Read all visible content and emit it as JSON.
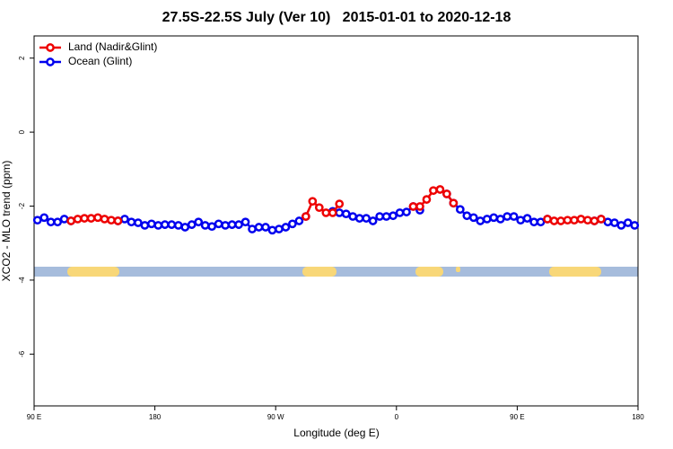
{
  "chart_data": {
    "type": "line",
    "title": "27.5S-22.5S July (Ver 10)   2015-01-01 to 2020-12-18",
    "xlabel": "Longitude (deg E)",
    "ylabel": "XCO2 - MLO trend (ppm)",
    "xlim": [
      90,
      540
    ],
    "ylim": [
      -7.4,
      2.6
    ],
    "xticks": [
      {
        "value": 90,
        "label": "90 E"
      },
      180,
      {
        "value": 270,
        "label": "90 W"
      },
      {
        "value": 360,
        "label": "0"
      },
      {
        "value": 450,
        "label": "90 E"
      },
      {
        "value": 540,
        "label": "180"
      }
    ],
    "yticks": [
      2,
      0,
      -2,
      -4,
      -6
    ],
    "legend": "topleft",
    "x": [
      92.5,
      97.5,
      102.5,
      107.5,
      112.5,
      117.5,
      122.5,
      127.5,
      132.5,
      137.5,
      142.5,
      147.5,
      152.5,
      157.5,
      162.5,
      167.5,
      172.5,
      177.5,
      182.5,
      187.5,
      192.5,
      197.5,
      202.5,
      207.5,
      212.5,
      217.5,
      222.5,
      227.5,
      232.5,
      237.5,
      242.5,
      247.5,
      252.5,
      257.5,
      262.5,
      267.5,
      272.5,
      277.5,
      282.5,
      287.5,
      292.5,
      297.5,
      302.5,
      307.5,
      312.5,
      317.5,
      322.5,
      327.5,
      332.5,
      337.5,
      342.5,
      347.5,
      352.5,
      357.5,
      362.5,
      367.5,
      372.5,
      377.5,
      382.5,
      387.5,
      392.5,
      397.5,
      402.5,
      407.5,
      412.5,
      417.5,
      422.5,
      427.5,
      432.5,
      437.5,
      442.5,
      447.5,
      452.5,
      457.5,
      462.5,
      467.5,
      472.5,
      477.5,
      482.5,
      487.5,
      492.5,
      497.5,
      502.5,
      507.5,
      512.5,
      517.5,
      522.5,
      527.5,
      532.5,
      537.5
    ],
    "series": [
      {
        "name": "Ocean (Glint)",
        "color": "#0000ee",
        "values": [
          -2.38,
          -2.31,
          -2.43,
          -2.43,
          -2.35,
          -2.4,
          null,
          null,
          null,
          null,
          null,
          null,
          -2.4,
          -2.35,
          -2.43,
          -2.45,
          -2.52,
          -2.48,
          -2.52,
          -2.5,
          -2.5,
          -2.52,
          -2.57,
          -2.5,
          -2.43,
          -2.52,
          -2.55,
          -2.48,
          -2.52,
          -2.5,
          -2.5,
          -2.43,
          -2.62,
          -2.57,
          -2.57,
          -2.65,
          -2.62,
          -2.57,
          -2.48,
          -2.4,
          -2.28,
          null,
          null,
          null,
          -2.14,
          -2.18,
          -2.21,
          -2.28,
          -2.33,
          -2.33,
          -2.4,
          -2.28,
          -2.28,
          -2.26,
          -2.18,
          -2.16,
          -2.01,
          -2.11,
          null,
          null,
          null,
          -1.67,
          -1.92,
          -2.09,
          -2.26,
          -2.31,
          -2.4,
          -2.35,
          -2.31,
          -2.35,
          -2.28,
          -2.28,
          -2.38,
          -2.33,
          -2.43,
          -2.43,
          -2.35,
          null,
          null,
          null,
          null,
          null,
          null,
          -2.4,
          -2.35,
          -2.43,
          -2.45,
          -2.52,
          -2.45,
          -2.52
        ]
      },
      {
        "name": "Land (Nadir&Glint)",
        "color": "#ee0000",
        "values": [
          null,
          null,
          null,
          null,
          null,
          -2.4,
          -2.35,
          -2.33,
          -2.33,
          -2.31,
          -2.35,
          -2.38,
          -2.4,
          null,
          null,
          null,
          null,
          null,
          null,
          null,
          null,
          null,
          null,
          null,
          null,
          null,
          null,
          null,
          null,
          null,
          null,
          null,
          null,
          null,
          null,
          null,
          null,
          null,
          null,
          null,
          -2.28,
          -1.87,
          -2.04,
          -2.18,
          -2.18,
          -1.94,
          null,
          null,
          null,
          null,
          null,
          null,
          null,
          null,
          null,
          null,
          -2.01,
          -2.01,
          -1.82,
          -1.58,
          -1.55,
          -1.67,
          -1.92,
          null,
          null,
          null,
          null,
          null,
          null,
          null,
          null,
          null,
          null,
          null,
          null,
          null,
          -2.35,
          -2.4,
          -2.4,
          -2.38,
          -2.38,
          -2.35,
          -2.38,
          -2.4,
          -2.35,
          null,
          null,
          null,
          null,
          null
        ]
      }
    ]
  }
}
